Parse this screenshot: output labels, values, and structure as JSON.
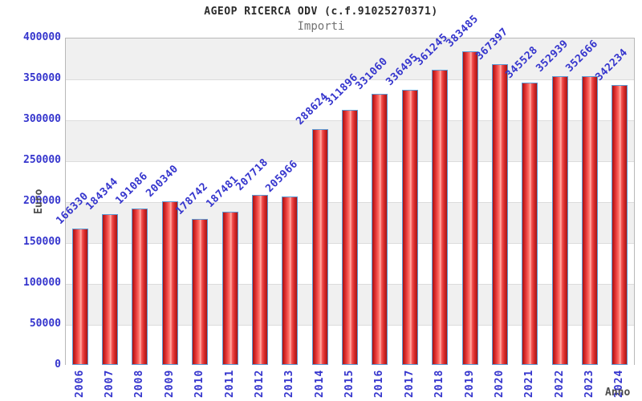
{
  "chart_data": {
    "type": "bar",
    "title": "AGEOP RICERCA ODV (c.f.91025270371)",
    "subtitle": "Importi",
    "xlabel": "Anno",
    "ylabel": "Euro",
    "categories": [
      "2006",
      "2007",
      "2008",
      "2009",
      "2010",
      "2011",
      "2012",
      "2013",
      "2014",
      "2015",
      "2016",
      "2017",
      "2018",
      "2019",
      "2020",
      "2021",
      "2022",
      "2023",
      "2024"
    ],
    "values": [
      166330,
      184344,
      191086,
      200340,
      178742,
      187481,
      207718,
      205966,
      288624,
      311896,
      331060,
      336495,
      361245,
      383485,
      367397,
      345528,
      352939,
      352666,
      342234
    ],
    "ylim": [
      0,
      400000
    ],
    "ytick_step": 50000,
    "yticks": [
      0,
      50000,
      100000,
      150000,
      200000,
      250000,
      300000,
      350000,
      400000
    ],
    "grid": "horizontal-bands",
    "legend_position": "none",
    "value_labels_shown": true
  },
  "colors": {
    "bar_fill": "#e03030",
    "bar_border": "#5b9bd5",
    "text_blue": "#3535cd",
    "band_gray": "#f0f0f0",
    "band_white": "#ffffff",
    "gridline": "#dcdcdc",
    "frame_border": "#b8b8b8",
    "title_text": "#2a2a2a",
    "subtitle_text": "#737373",
    "axis_title_text": "#4d4d4d"
  }
}
